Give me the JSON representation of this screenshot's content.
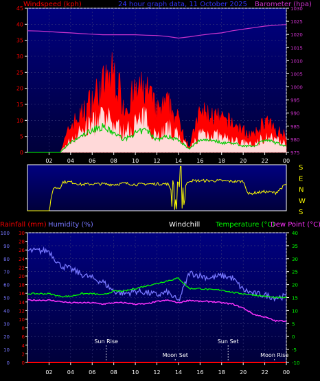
{
  "colors": {
    "background": "#000000",
    "plot_top": "#000080",
    "plot_bottom": "#00003a",
    "wind": "#ff0000",
    "wind_avg": "#00cc00",
    "gust_core": "#ffffff",
    "barometer": "#cc33cc",
    "direction": "#ffff00",
    "rain": "#ff0000",
    "humidity": "#7777ff",
    "temperature": "#00ff00",
    "dewpoint": "#ff33ff",
    "white": "#ffffff",
    "grid": "#3a3a7a"
  },
  "header": {
    "title": "24 hour graph data, 11 October 2025",
    "left_label": "Windspeed (kph)",
    "right_label": "Barometer (hpa)"
  },
  "chart_data": [
    {
      "type": "area",
      "panel": "wind",
      "xlabel": "",
      "ylabel": "Windspeed (kph)",
      "ylabel_right": "Barometer (hpa)",
      "ylim": [
        0,
        45
      ],
      "ylim_right": [
        975,
        1030
      ],
      "x_ticks": [
        "02",
        "04",
        "06",
        "08",
        "10",
        "12",
        "14",
        "16",
        "18",
        "20",
        "22",
        "00"
      ],
      "y_ticks": [
        "0",
        "5",
        "10",
        "15",
        "20",
        "25",
        "30",
        "35",
        "40",
        "45"
      ],
      "y_ticks_right": [
        "975",
        "980",
        "985",
        "990",
        "995",
        "1000",
        "1005",
        "1010",
        "1015",
        "1020",
        "1025",
        "1030"
      ],
      "x_hours": [
        0,
        1,
        2,
        3,
        4,
        5,
        6,
        7,
        8,
        9,
        10,
        11,
        12,
        13,
        14,
        15,
        16,
        17,
        18,
        19,
        20,
        21,
        22,
        23,
        24
      ],
      "series": [
        {
          "name": "Gust",
          "axis": "left",
          "values": [
            0,
            0,
            0,
            0,
            10,
            14,
            20,
            25,
            30,
            17,
            22,
            24,
            15,
            18,
            12,
            2,
            15,
            14,
            12,
            11,
            8,
            6,
            12,
            8,
            7
          ]
        },
        {
          "name": "Wind",
          "axis": "left",
          "values": [
            0,
            0,
            0,
            0,
            5,
            9,
            12,
            14,
            12,
            8,
            12,
            14,
            7,
            10,
            7,
            1,
            8,
            8,
            6,
            5,
            4,
            3,
            7,
            5,
            4
          ]
        },
        {
          "name": "Average",
          "axis": "left",
          "values": [
            0,
            0,
            0,
            0,
            3,
            5,
            7,
            8,
            6,
            4,
            6,
            7,
            4,
            5,
            4,
            1,
            4,
            4,
            3,
            3,
            2,
            2,
            4,
            3,
            2
          ]
        },
        {
          "name": "Barometer",
          "axis": "right",
          "values": [
            1021.4,
            1021.3,
            1021.1,
            1020.8,
            1020.6,
            1020.3,
            1020.1,
            1019.9,
            1019.9,
            1019.9,
            1019.9,
            1019.7,
            1019.6,
            1019.2,
            1018.6,
            1019.1,
            1019.7,
            1020.2,
            1020.6,
            1021.4,
            1022.0,
            1022.6,
            1023.2,
            1023.5,
            1023.8
          ]
        }
      ]
    },
    {
      "type": "line",
      "panel": "direction",
      "xlabel": "",
      "ylabel": "",
      "ylim": [
        0,
        360
      ],
      "y_ticks": [
        "S",
        "E",
        "N",
        "W",
        "S"
      ],
      "x_hours": [
        0,
        1,
        2,
        2.4,
        3,
        3.3,
        4,
        5,
        6,
        7,
        8,
        9,
        10,
        11,
        12,
        13,
        13.3,
        14,
        14.5,
        15,
        16,
        17,
        18,
        19,
        20,
        20.5,
        21,
        22,
        23,
        23.5,
        24
      ],
      "series": [
        {
          "name": "Wind Direction",
          "values": [
            0,
            0,
            0,
            180,
            180,
            225,
            225,
            205,
            210,
            210,
            205,
            215,
            205,
            210,
            210,
            210,
            170,
            240,
            180,
            235,
            235,
            235,
            235,
            230,
            230,
            130,
            140,
            150,
            140,
            175,
            210
          ]
        }
      ]
    },
    {
      "type": "line",
      "panel": "weather",
      "xlabel": "",
      "ylabel": "Rainfall (mm)",
      "ylabel_humidity": "Humidity (%)",
      "ylabel_windchill": "Windchill",
      "ylabel_temperature": "Temperature (°C)",
      "ylabel_dewpoint": "Dew Point (°C)",
      "ylim_rain": [
        0,
        30
      ],
      "ylim_humidity": [
        0,
        100
      ],
      "ylim_temperature": [
        -10,
        40
      ],
      "y_ticks_rain": [
        "0",
        "2",
        "4",
        "6",
        "8",
        "10",
        "12",
        "14",
        "16",
        "18",
        "20",
        "22",
        "24",
        "26",
        "28",
        "30"
      ],
      "y_ticks_humidity": [
        "0",
        "10",
        "20",
        "30",
        "40",
        "50",
        "60",
        "70",
        "80",
        "90",
        "100"
      ],
      "y_ticks_temperature": [
        "-10",
        "-5",
        "0",
        "5",
        "10",
        "15",
        "20",
        "25",
        "30",
        "35",
        "40"
      ],
      "x_hours": [
        0,
        1,
        2,
        3,
        4,
        5,
        6,
        7,
        8,
        9,
        10,
        11,
        12,
        13,
        14,
        15,
        16,
        17,
        18,
        19,
        20,
        21,
        22,
        23,
        24
      ],
      "series": [
        {
          "name": "Humidity",
          "axis": "humidity",
          "values": [
            86,
            86,
            86,
            75,
            72,
            68,
            65,
            62,
            55,
            53,
            55,
            54,
            52,
            54,
            47,
            69,
            67,
            65,
            67,
            65,
            56,
            53,
            52,
            50,
            51
          ]
        },
        {
          "name": "Temperature",
          "axis": "temperature",
          "values": [
            16.5,
            16.5,
            16.5,
            15.5,
            15.5,
            16.5,
            16.5,
            16,
            17.5,
            17.5,
            18.5,
            19.5,
            20.5,
            21.5,
            22.5,
            18.5,
            18.5,
            18,
            18,
            17,
            16.5,
            16,
            15.5,
            15,
            15
          ]
        },
        {
          "name": "Dew Point",
          "axis": "temperature",
          "values": [
            14,
            14,
            14,
            13.5,
            13,
            13,
            13,
            12.5,
            13,
            13,
            12.5,
            12.5,
            13.5,
            14,
            13,
            14,
            13.5,
            13.5,
            13,
            12.5,
            11,
            8.5,
            7.5,
            6,
            6
          ]
        },
        {
          "name": "Rainfall",
          "axis": "rain",
          "values": [
            0,
            0,
            0,
            0,
            0,
            0,
            0,
            0,
            0,
            0,
            0,
            0,
            0,
            0,
            0,
            0,
            0,
            0,
            0,
            0,
            0,
            0,
            0,
            0,
            0
          ]
        }
      ],
      "annotations": [
        {
          "text": "Sun Rise",
          "hour": 7.3
        },
        {
          "text": "Moon Set",
          "hour": 13.7
        },
        {
          "text": "Sun Set",
          "hour": 18.6
        },
        {
          "text": "Moon Rise",
          "hour": 22.9
        }
      ]
    }
  ]
}
